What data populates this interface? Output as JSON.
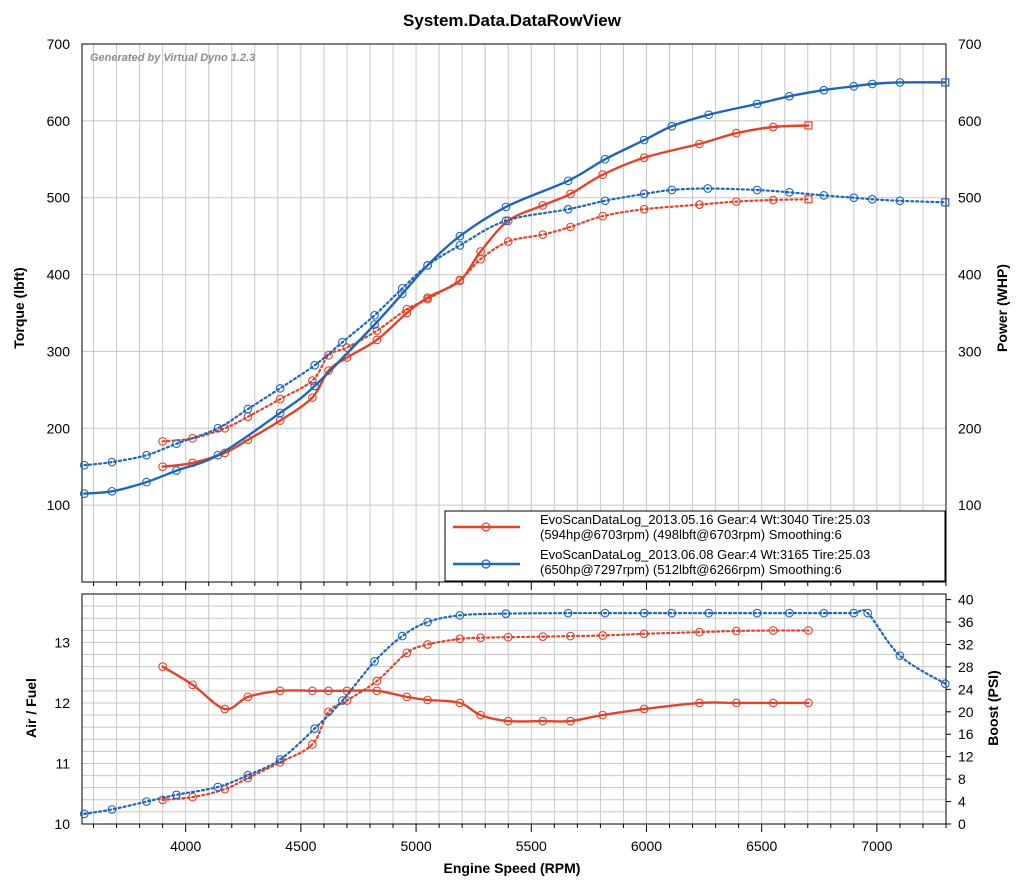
{
  "title": "System.Data.DataRowView",
  "watermark": "Generated by Virtual Dyno 1.2.3",
  "colors": {
    "red": "#e0442a",
    "blue": "#1f66b8",
    "grid": "#c8c8c8"
  },
  "chart_data": [
    {
      "type": "line",
      "panel": "top",
      "xlabel": "",
      "ylabel": "Torque (lbft)",
      "y2label": "Power (WHP)",
      "xlim": [
        3550,
        7300
      ],
      "ylim": [
        0,
        700
      ],
      "y2lim": [
        0,
        700
      ],
      "xticks": [
        "4000",
        "4500",
        "5000",
        "5500",
        "6000",
        "6500",
        "7000"
      ],
      "yticks": [
        "100",
        "200",
        "300",
        "400",
        "500",
        "600",
        "700"
      ],
      "y2ticks": [
        "100",
        "200",
        "300",
        "400",
        "500",
        "600",
        "700"
      ],
      "grid": true,
      "legend_position": "bottom-right",
      "legend": [
        {
          "line1": "EvoScanDataLog_2013.05.16 Gear:4 Wt:3040 Tire:25.03",
          "line2": "(594hp@6703rpm) (498lbft@6703rpm) Smoothing:6",
          "color": "#e0442a"
        },
        {
          "line1": "EvoScanDataLog_2013.06.08 Gear:4 Wt:3165 Tire:25.03",
          "line2": "(650hp@7297rpm) (512lbft@6266rpm) Smoothing:6",
          "color": "#1f66b8"
        }
      ],
      "series": [
        {
          "quantity": "power",
          "style": "solid",
          "color": "#e0442a",
          "marker_end": "square",
          "x": [
            3900,
            4030,
            4170,
            4270,
            4410,
            4550,
            4620,
            4700,
            4830,
            4960,
            5050,
            5190,
            5280,
            5400,
            5550,
            5670,
            5810,
            5990,
            6230,
            6390,
            6550,
            6703
          ],
          "y": [
            150,
            155,
            168,
            185,
            210,
            240,
            275,
            292,
            315,
            350,
            370,
            392,
            430,
            470,
            490,
            505,
            530,
            552,
            570,
            584,
            592,
            594
          ]
        },
        {
          "quantity": "torque",
          "style": "dotted",
          "color": "#e0442a",
          "marker_end": "square",
          "x": [
            3900,
            4030,
            4170,
            4270,
            4410,
            4550,
            4620,
            4700,
            4830,
            4960,
            5050,
            5190,
            5280,
            5400,
            5550,
            5670,
            5810,
            5990,
            6230,
            6390,
            6550,
            6703
          ],
          "y": [
            183,
            187,
            200,
            215,
            238,
            262,
            295,
            305,
            327,
            355,
            368,
            393,
            420,
            443,
            452,
            462,
            476,
            485,
            491,
            495,
            497,
            498
          ]
        },
        {
          "quantity": "power",
          "style": "solid",
          "color": "#1f66b8",
          "marker_end": "square",
          "x": [
            3560,
            3680,
            3830,
            3960,
            4140,
            4410,
            4560,
            4820,
            4940,
            5050,
            5190,
            5390,
            5660,
            5820,
            5990,
            6110,
            6270,
            6480,
            6620,
            6770,
            6900,
            6980,
            7100,
            7297
          ],
          "y": [
            115,
            118,
            130,
            145,
            165,
            220,
            255,
            335,
            375,
            412,
            450,
            488,
            522,
            550,
            575,
            593,
            608,
            622,
            632,
            640,
            645,
            648,
            650,
            650
          ]
        },
        {
          "quantity": "torque",
          "style": "dotted",
          "color": "#1f66b8",
          "marker_end": "square",
          "x": [
            3560,
            3680,
            3830,
            3960,
            4140,
            4270,
            4410,
            4560,
            4680,
            4820,
            4940,
            5050,
            5190,
            5390,
            5660,
            5820,
            5990,
            6110,
            6266,
            6480,
            6620,
            6770,
            6900,
            6980,
            7100,
            7297
          ],
          "y": [
            152,
            156,
            165,
            180,
            200,
            225,
            252,
            282,
            312,
            347,
            382,
            412,
            438,
            470,
            485,
            496,
            505,
            510,
            512,
            510,
            507,
            503,
            500,
            498,
            496,
            494
          ]
        }
      ]
    },
    {
      "type": "line",
      "panel": "bottom",
      "xlabel": "Engine Speed (RPM)",
      "ylabel": "Air / Fuel",
      "y2label": "Boost (PSI)",
      "xlim": [
        3550,
        7300
      ],
      "ylim": [
        10,
        13.8
      ],
      "y2lim": [
        0,
        41
      ],
      "xticks": [
        "4000",
        "4500",
        "5000",
        "5500",
        "6000",
        "6500",
        "7000"
      ],
      "yticks": [
        "10",
        "11",
        "12",
        "13"
      ],
      "y2ticks": [
        "0",
        "4",
        "8",
        "12",
        "16",
        "20",
        "24",
        "28",
        "32",
        "36",
        "40"
      ],
      "grid": true,
      "series": [
        {
          "quantity": "air_fuel",
          "axis": "left",
          "style": "solid",
          "color": "#e0442a",
          "x": [
            3900,
            4030,
            4170,
            4270,
            4410,
            4550,
            4620,
            4700,
            4830,
            4960,
            5050,
            5190,
            5280,
            5400,
            5550,
            5670,
            5810,
            5990,
            6230,
            6390,
            6550,
            6703
          ],
          "y": [
            12.6,
            12.3,
            11.9,
            12.1,
            12.2,
            12.2,
            12.2,
            12.2,
            12.2,
            12.1,
            12.05,
            12.0,
            11.8,
            11.7,
            11.7,
            11.7,
            11.8,
            11.9,
            12.0,
            12.0,
            12.0,
            12.0
          ]
        },
        {
          "quantity": "boost",
          "axis": "right",
          "style": "dotted",
          "color": "#e0442a",
          "x": [
            3900,
            4030,
            4170,
            4270,
            4410,
            4550,
            4620,
            4700,
            4830,
            4960,
            5050,
            5190,
            5280,
            5400,
            5550,
            5670,
            5810,
            5990,
            6230,
            6390,
            6550,
            6703
          ],
          "y": [
            4.3,
            4.8,
            6.2,
            8.2,
            11.0,
            14.2,
            20.0,
            22.0,
            25.5,
            30.5,
            32.0,
            33.0,
            33.2,
            33.3,
            33.4,
            33.5,
            33.6,
            33.9,
            34.2,
            34.4,
            34.5,
            34.5
          ]
        },
        {
          "quantity": "boost",
          "axis": "right",
          "style": "dotted",
          "color": "#1f66b8",
          "x": [
            3560,
            3680,
            3830,
            3960,
            4140,
            4270,
            4410,
            4560,
            4680,
            4820,
            4940,
            5050,
            5190,
            5390,
            5660,
            5820,
            5990,
            6110,
            6270,
            6480,
            6620,
            6770,
            6900,
            6960,
            7100,
            7297
          ],
          "y": [
            1.8,
            2.6,
            4.0,
            5.2,
            6.6,
            8.7,
            11.5,
            17.0,
            22.0,
            29.0,
            33.5,
            36.0,
            37.2,
            37.5,
            37.6,
            37.6,
            37.6,
            37.6,
            37.6,
            37.6,
            37.6,
            37.6,
            37.6,
            37.6,
            30.0,
            25.0
          ]
        }
      ]
    }
  ]
}
